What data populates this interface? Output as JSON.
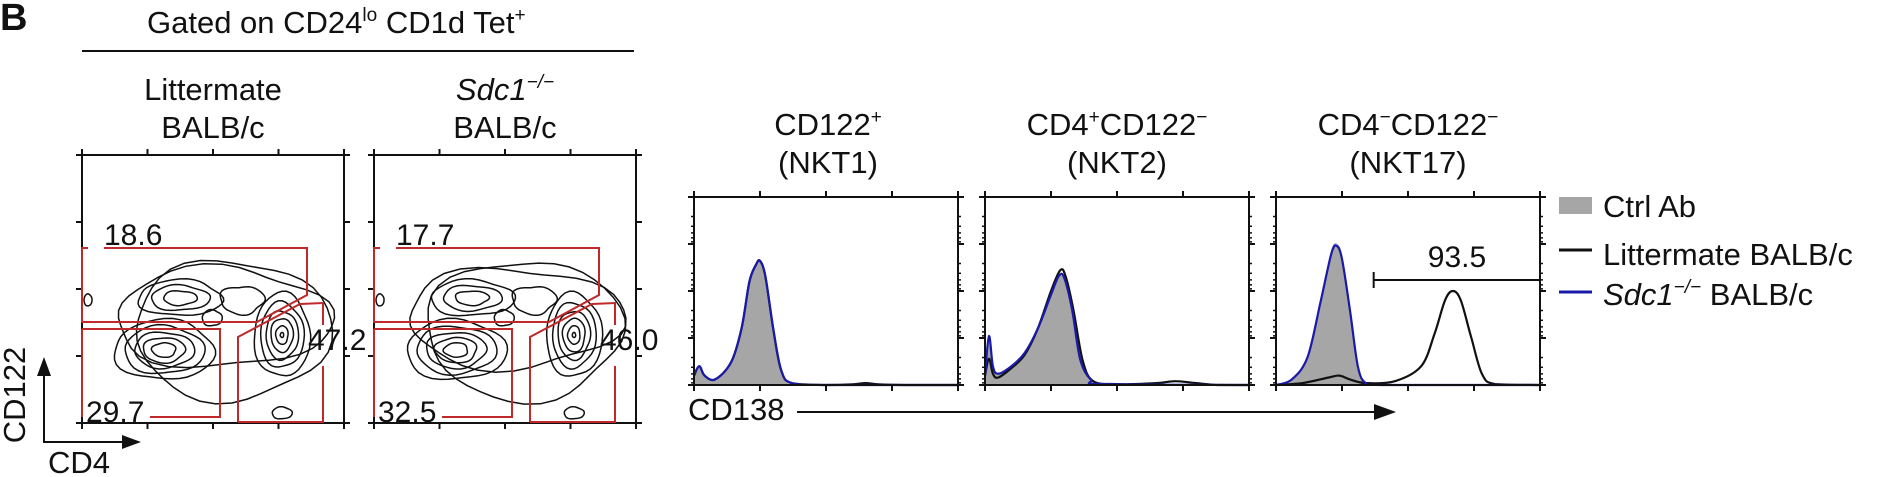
{
  "panel_label": "B",
  "header": {
    "title_pre": "Gated on CD24",
    "title_sup1": "lo",
    "title_mid": " CD1d Tet",
    "title_sup2": "+"
  },
  "contour_plots": [
    {
      "label_line1": "Littermate",
      "label_line1_sup": "",
      "label_line2": "BALB/c",
      "gates": {
        "upper": "18.6",
        "lower_left": "29.7",
        "right": "47.2"
      }
    },
    {
      "label_line1": "Sdc1",
      "label_line1_sup": "−/−",
      "label_line2": "BALB/c",
      "gates": {
        "upper": "17.7",
        "lower_left": "32.5",
        "right": "46.0"
      }
    }
  ],
  "contour_axes": {
    "x": "CD4",
    "y": "CD122"
  },
  "colors": {
    "gate": "#c0282a",
    "ctrl_fill": "#a6a6a6",
    "littermate": "#111111",
    "sdc1": "#1a1aa8"
  },
  "chart_data": {
    "type": "area",
    "xlabel": "CD138",
    "xlim": [
      0,
      1
    ],
    "ylim": [
      0,
      100
    ],
    "legend_position": "right",
    "legend": [
      {
        "name": "Ctrl Ab",
        "style": "filled"
      },
      {
        "name": "Littermate BALB/c",
        "style": "line"
      },
      {
        "name": "Sdc1",
        "name_sup": "−/−",
        "name_post": " BALB/c",
        "style": "line"
      }
    ],
    "panels": [
      {
        "title_line1": "CD122",
        "title_sup": "+",
        "title_rest": "",
        "title_rest_sup": "",
        "title_line2": "(NKT1)",
        "gate_label": "",
        "series": {
          "ctrl": [
            [
              0,
              5
            ],
            [
              0.02,
              10
            ],
            [
              0.04,
              5
            ],
            [
              0.08,
              3
            ],
            [
              0.14,
              12
            ],
            [
              0.18,
              30
            ],
            [
              0.21,
              55
            ],
            [
              0.235,
              64
            ],
            [
              0.25,
              66
            ],
            [
              0.27,
              58
            ],
            [
              0.3,
              30
            ],
            [
              0.33,
              8
            ],
            [
              0.37,
              1
            ],
            [
              0.5,
              0
            ],
            [
              1,
              0
            ]
          ],
          "littermate": [
            [
              0,
              5
            ],
            [
              0.02,
              10
            ],
            [
              0.04,
              5
            ],
            [
              0.08,
              3
            ],
            [
              0.14,
              12
            ],
            [
              0.18,
              30
            ],
            [
              0.21,
              55
            ],
            [
              0.235,
              64
            ],
            [
              0.25,
              66
            ],
            [
              0.27,
              58
            ],
            [
              0.3,
              30
            ],
            [
              0.33,
              8
            ],
            [
              0.37,
              1
            ],
            [
              0.5,
              0
            ],
            [
              0.6,
              0.3
            ],
            [
              0.65,
              1
            ],
            [
              0.7,
              0.3
            ],
            [
              0.8,
              0
            ],
            [
              1,
              0
            ]
          ],
          "sdc1": [
            [
              0,
              5
            ],
            [
              0.02,
              10
            ],
            [
              0.04,
              5
            ],
            [
              0.08,
              3
            ],
            [
              0.14,
              12
            ],
            [
              0.18,
              30
            ],
            [
              0.21,
              55
            ],
            [
              0.235,
              64
            ],
            [
              0.25,
              66
            ],
            [
              0.27,
              58
            ],
            [
              0.3,
              30
            ],
            [
              0.33,
              8
            ],
            [
              0.37,
              1
            ],
            [
              0.5,
              0
            ],
            [
              1,
              0
            ]
          ]
        }
      },
      {
        "title_line1": "CD4",
        "title_sup": "+",
        "title_rest": "CD122",
        "title_rest_sup": "−",
        "title_line2": "(NKT2)",
        "gate_label": "",
        "series": {
          "ctrl": [
            [
              0,
              5
            ],
            [
              0.015,
              24
            ],
            [
              0.03,
              10
            ],
            [
              0.05,
              6
            ],
            [
              0.1,
              10
            ],
            [
              0.15,
              17
            ],
            [
              0.2,
              30
            ],
            [
              0.25,
              48
            ],
            [
              0.28,
              58
            ],
            [
              0.3,
              57
            ],
            [
              0.33,
              40
            ],
            [
              0.36,
              14
            ],
            [
              0.4,
              3
            ],
            [
              0.45,
              0.5
            ],
            [
              1,
              0
            ]
          ],
          "littermate": [
            [
              0,
              5
            ],
            [
              0.015,
              14
            ],
            [
              0.03,
              6
            ],
            [
              0.05,
              4
            ],
            [
              0.1,
              9
            ],
            [
              0.15,
              16
            ],
            [
              0.2,
              30
            ],
            [
              0.25,
              50
            ],
            [
              0.285,
              61
            ],
            [
              0.305,
              58
            ],
            [
              0.335,
              40
            ],
            [
              0.37,
              13
            ],
            [
              0.41,
              2
            ],
            [
              0.5,
              0.5
            ],
            [
              0.65,
              1
            ],
            [
              0.72,
              2
            ],
            [
              0.8,
              1
            ],
            [
              0.88,
              0
            ],
            [
              1,
              0
            ]
          ],
          "sdc1": [
            [
              0,
              5
            ],
            [
              0.015,
              26
            ],
            [
              0.03,
              10
            ],
            [
              0.05,
              6
            ],
            [
              0.1,
              10
            ],
            [
              0.15,
              17
            ],
            [
              0.2,
              30
            ],
            [
              0.25,
              48
            ],
            [
              0.28,
              58
            ],
            [
              0.3,
              57
            ],
            [
              0.33,
              40
            ],
            [
              0.36,
              14
            ],
            [
              0.4,
              3
            ],
            [
              0.45,
              0.5
            ],
            [
              1,
              0
            ]
          ]
        }
      },
      {
        "title_line1": "CD4",
        "title_sup": "−",
        "title_rest": "CD122",
        "title_rest_sup": "−",
        "title_line2": "(NKT17)",
        "gate_label": "93.5",
        "gate_range": [
          0.37,
          1
        ],
        "series": {
          "ctrl": [
            [
              0,
              0
            ],
            [
              0.06,
              3
            ],
            [
              0.12,
              15
            ],
            [
              0.17,
              45
            ],
            [
              0.21,
              71
            ],
            [
              0.23,
              75
            ],
            [
              0.25,
              68
            ],
            [
              0.28,
              40
            ],
            [
              0.31,
              10
            ],
            [
              0.34,
              1
            ],
            [
              0.4,
              0
            ],
            [
              1,
              0
            ]
          ],
          "littermate": [
            [
              0,
              0
            ],
            [
              0.1,
              1
            ],
            [
              0.2,
              4
            ],
            [
              0.24,
              5
            ],
            [
              0.28,
              3
            ],
            [
              0.34,
              1
            ],
            [
              0.45,
              2
            ],
            [
              0.55,
              10
            ],
            [
              0.6,
              27
            ],
            [
              0.64,
              45
            ],
            [
              0.67,
              50
            ],
            [
              0.7,
              45
            ],
            [
              0.74,
              25
            ],
            [
              0.78,
              6
            ],
            [
              0.83,
              0.5
            ],
            [
              1,
              0
            ]
          ],
          "sdc1": [
            [
              0,
              0
            ],
            [
              0.06,
              3
            ],
            [
              0.12,
              15
            ],
            [
              0.17,
              45
            ],
            [
              0.21,
              70
            ],
            [
              0.23,
              74
            ],
            [
              0.25,
              67
            ],
            [
              0.28,
              40
            ],
            [
              0.31,
              10
            ],
            [
              0.34,
              1
            ],
            [
              0.4,
              0
            ],
            [
              1,
              0
            ]
          ]
        }
      }
    ]
  }
}
